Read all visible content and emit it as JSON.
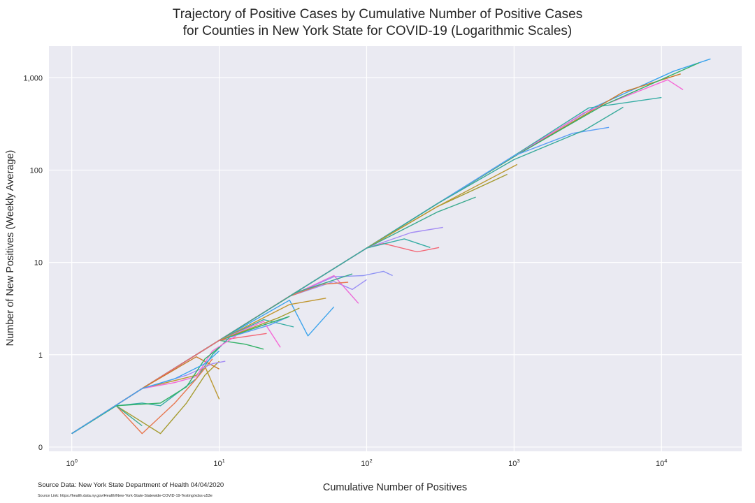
{
  "chart_data": {
    "type": "line",
    "title_line1": "Trajectory of Positive Cases by Cumulative Number of Positive Cases",
    "title_line2": "for Counties in New York State for COVID-19 (Logarithmic Scales)",
    "xlabel": "Cumulative Number of Positives",
    "ylabel": "Number of New Positives (Weekly Average)",
    "x_scale": "log",
    "y_scale": "log",
    "xlim": [
      0.7,
      35000
    ],
    "ylim": [
      0.09,
      2200
    ],
    "grid": true,
    "legend": "none",
    "x_ticks": [
      {
        "value": 1,
        "base": "10",
        "exp": "0"
      },
      {
        "value": 10,
        "base": "10",
        "exp": "1"
      },
      {
        "value": 100,
        "base": "10",
        "exp": "2"
      },
      {
        "value": 1000,
        "base": "10",
        "exp": "3"
      },
      {
        "value": 10000,
        "base": "10",
        "exp": "4"
      }
    ],
    "y_ticks": [
      {
        "value": 0.1,
        "label": "0"
      },
      {
        "value": 1,
        "label": "1"
      },
      {
        "value": 10,
        "label": "10"
      },
      {
        "value": 100,
        "label": "100"
      },
      {
        "value": 1000,
        "label": "1,000"
      }
    ],
    "series": [
      {
        "color": "#3ba3ec",
        "points": [
          [
            1,
            0.14
          ],
          [
            3,
            0.43
          ],
          [
            10,
            1.43
          ],
          [
            30,
            4.3
          ],
          [
            100,
            14.3
          ],
          [
            300,
            43
          ],
          [
            1000,
            143
          ],
          [
            3500,
            480
          ],
          [
            12000,
            1170
          ],
          [
            21500,
            1600
          ]
        ]
      },
      {
        "color": "#36ada4",
        "points": [
          [
            1,
            0.14
          ],
          [
            3,
            0.43
          ],
          [
            10,
            1.43
          ],
          [
            30,
            4.3
          ],
          [
            100,
            14.3
          ],
          [
            300,
            43
          ],
          [
            1000,
            143
          ],
          [
            3200,
            470
          ],
          [
            10000,
            610
          ]
        ]
      },
      {
        "color": "#cc7a2a",
        "points": [
          [
            1,
            0.14
          ],
          [
            3,
            0.43
          ],
          [
            10,
            1.43
          ],
          [
            30,
            4.3
          ],
          [
            100,
            14.3
          ],
          [
            300,
            43
          ],
          [
            1000,
            140
          ],
          [
            5500,
            700
          ],
          [
            13500,
            1100
          ]
        ]
      },
      {
        "color": "#f569d6",
        "points": [
          [
            1,
            0.14
          ],
          [
            3,
            0.43
          ],
          [
            10,
            1.43
          ],
          [
            30,
            4.3
          ],
          [
            100,
            14.3
          ],
          [
            300,
            43
          ],
          [
            1000,
            140
          ],
          [
            3000,
            420
          ],
          [
            11000,
            950
          ],
          [
            14000,
            740
          ]
        ]
      },
      {
        "color": "#32b166",
        "points": [
          [
            1,
            0.14
          ],
          [
            3,
            0.43
          ],
          [
            10,
            1.43
          ],
          [
            30,
            4.3
          ],
          [
            100,
            14.3
          ],
          [
            300,
            43
          ],
          [
            1000,
            140
          ],
          [
            4000,
            500
          ],
          [
            18000,
            1450
          ]
        ]
      },
      {
        "color": "#5a9ef6",
        "points": [
          [
            1,
            0.14
          ],
          [
            3,
            0.43
          ],
          [
            10,
            1.43
          ],
          [
            30,
            4.3
          ],
          [
            100,
            14.3
          ],
          [
            300,
            43
          ],
          [
            1000,
            143
          ],
          [
            2500,
            250
          ],
          [
            4400,
            290
          ]
        ]
      },
      {
        "color": "#37aa9a",
        "points": [
          [
            1,
            0.14
          ],
          [
            3,
            0.43
          ],
          [
            10,
            1.43
          ],
          [
            30,
            4.3
          ],
          [
            100,
            14.3
          ],
          [
            300,
            43
          ],
          [
            1000,
            130
          ],
          [
            3000,
            270
          ],
          [
            5500,
            480
          ]
        ]
      },
      {
        "color": "#a69c31",
        "points": [
          [
            1,
            0.14
          ],
          [
            3,
            0.43
          ],
          [
            10,
            1.43
          ],
          [
            30,
            4.3
          ],
          [
            100,
            14.3
          ],
          [
            300,
            40
          ],
          [
            900,
            90
          ]
        ]
      },
      {
        "color": "#bb9831",
        "points": [
          [
            1,
            0.14
          ],
          [
            3,
            0.43
          ],
          [
            10,
            1.43
          ],
          [
            30,
            4.3
          ],
          [
            100,
            14.3
          ],
          [
            300,
            40
          ],
          [
            1050,
            115
          ]
        ]
      },
      {
        "color": "#3aaa8e",
        "points": [
          [
            1,
            0.14
          ],
          [
            3,
            0.43
          ],
          [
            10,
            1.43
          ],
          [
            30,
            4.3
          ],
          [
            100,
            14.3
          ],
          [
            300,
            35
          ],
          [
            550,
            51
          ]
        ]
      },
      {
        "color": "#a48cf4",
        "points": [
          [
            1,
            0.14
          ],
          [
            3,
            0.43
          ],
          [
            10,
            1.43
          ],
          [
            30,
            4.3
          ],
          [
            100,
            14.3
          ],
          [
            200,
            21
          ],
          [
            330,
            24
          ]
        ]
      },
      {
        "color": "#f36574",
        "points": [
          [
            1,
            0.14
          ],
          [
            3,
            0.43
          ],
          [
            10,
            1.43
          ],
          [
            30,
            4.3
          ],
          [
            100,
            14.3
          ],
          [
            130,
            16
          ],
          [
            220,
            13
          ],
          [
            310,
            14.5
          ]
        ]
      },
      {
        "color": "#36ada4",
        "points": [
          [
            1,
            0.14
          ],
          [
            3,
            0.43
          ],
          [
            10,
            1.43
          ],
          [
            30,
            4.3
          ],
          [
            100,
            14.3
          ],
          [
            180,
            18
          ],
          [
            270,
            14.5
          ]
        ]
      },
      {
        "color": "#8f93f4",
        "points": [
          [
            1,
            0.14
          ],
          [
            3,
            0.43
          ],
          [
            10,
            1.43
          ],
          [
            30,
            4.3
          ],
          [
            60,
            7
          ],
          [
            95,
            7.2
          ],
          [
            130,
            8
          ],
          [
            150,
            7.2
          ]
        ]
      },
      {
        "color": "#9b8ff5",
        "points": [
          [
            1,
            0.14
          ],
          [
            3,
            0.43
          ],
          [
            10,
            1.43
          ],
          [
            30,
            4.3
          ],
          [
            60,
            6.2
          ],
          [
            80,
            5.1
          ],
          [
            100,
            6.5
          ]
        ]
      },
      {
        "color": "#ec6bd8",
        "points": [
          [
            1,
            0.14
          ],
          [
            3,
            0.43
          ],
          [
            10,
            1.43
          ],
          [
            30,
            4.3
          ],
          [
            60,
            7.2
          ],
          [
            88,
            3.6
          ]
        ]
      },
      {
        "color": "#e7774f",
        "points": [
          [
            1,
            0.14
          ],
          [
            3,
            0.43
          ],
          [
            10,
            1.43
          ],
          [
            30,
            4.3
          ],
          [
            50,
            5.8
          ],
          [
            75,
            6.1
          ]
        ]
      },
      {
        "color": "#3ba3ec",
        "points": [
          [
            1,
            0.14
          ],
          [
            3,
            0.43
          ],
          [
            10,
            1.43
          ],
          [
            30,
            3.9
          ],
          [
            40,
            1.6
          ],
          [
            60,
            3.3
          ]
        ]
      },
      {
        "color": "#c0962f",
        "points": [
          [
            1,
            0.14
          ],
          [
            3,
            0.43
          ],
          [
            10,
            1.43
          ],
          [
            30,
            3.5
          ],
          [
            53,
            4.1
          ]
        ]
      },
      {
        "color": "#3aaa8e",
        "points": [
          [
            1,
            0.14
          ],
          [
            3,
            0.43
          ],
          [
            10,
            1.43
          ],
          [
            33,
            4.7
          ],
          [
            80,
            7.5
          ]
        ]
      },
      {
        "color": "#36ada4",
        "points": [
          [
            1,
            0.14
          ],
          [
            3,
            0.43
          ],
          [
            10,
            1.43
          ],
          [
            20,
            2.4
          ],
          [
            32,
            2.0
          ]
        ]
      },
      {
        "color": "#5a9ef6",
        "points": [
          [
            1,
            0.14
          ],
          [
            3,
            0.43
          ],
          [
            10,
            1.43
          ],
          [
            22,
            2.1
          ],
          [
            30,
            2.6
          ]
        ]
      },
      {
        "color": "#f569d6",
        "points": [
          [
            1,
            0.14
          ],
          [
            3,
            0.43
          ],
          [
            10,
            1.43
          ],
          [
            20,
            2.3
          ],
          [
            26,
            1.2
          ]
        ]
      },
      {
        "color": "#32b166",
        "points": [
          [
            1,
            0.14
          ],
          [
            3,
            0.43
          ],
          [
            10,
            1.43
          ],
          [
            20,
            2.1
          ],
          [
            30,
            2.6
          ]
        ]
      },
      {
        "color": "#a69c31",
        "points": [
          [
            1,
            0.14
          ],
          [
            3,
            0.43
          ],
          [
            10,
            1.43
          ],
          [
            25,
            2.5
          ],
          [
            35,
            3.2
          ]
        ]
      },
      {
        "color": "#32b166",
        "points": [
          [
            1,
            0.14
          ],
          [
            3,
            0.43
          ],
          [
            10,
            1.43
          ],
          [
            15,
            1.3
          ],
          [
            20,
            1.15
          ]
        ]
      },
      {
        "color": "#f36574",
        "points": [
          [
            1,
            0.14
          ],
          [
            3,
            0.43
          ],
          [
            10,
            1.43
          ],
          [
            21,
            1.7
          ]
        ]
      },
      {
        "color": "#36ada4",
        "points": [
          [
            1,
            0.14
          ],
          [
            2,
            0.28
          ],
          [
            3,
            0.3
          ],
          [
            4,
            0.28
          ],
          [
            7,
            0.55
          ],
          [
            9,
            1.0
          ],
          [
            12,
            1.6
          ]
        ]
      },
      {
        "color": "#e7774f",
        "points": [
          [
            1,
            0.14
          ],
          [
            2,
            0.28
          ],
          [
            3,
            0.14
          ],
          [
            5,
            0.3
          ],
          [
            7,
            0.55
          ],
          [
            9,
            0.9
          ]
        ]
      },
      {
        "color": "#a69c31",
        "points": [
          [
            1,
            0.14
          ],
          [
            2,
            0.28
          ],
          [
            4,
            0.14
          ],
          [
            6,
            0.3
          ],
          [
            8,
            0.6
          ],
          [
            10,
            0.85
          ]
        ]
      },
      {
        "color": "#3aaa8e",
        "points": [
          [
            1,
            0.14
          ],
          [
            2,
            0.28
          ],
          [
            3,
            0.17
          ]
        ]
      },
      {
        "color": "#bb9831",
        "points": [
          [
            1,
            0.14
          ],
          [
            3,
            0.43
          ],
          [
            7,
            0.6
          ],
          [
            8,
            0.75
          ],
          [
            10,
            0.33
          ]
        ]
      },
      {
        "color": "#cc7a2a",
        "points": [
          [
            1,
            0.14
          ],
          [
            3,
            0.43
          ],
          [
            7,
            0.95
          ],
          [
            10,
            0.7
          ]
        ]
      },
      {
        "color": "#a48cf4",
        "points": [
          [
            1,
            0.14
          ],
          [
            3,
            0.43
          ],
          [
            6,
            0.6
          ],
          [
            9,
            0.8
          ],
          [
            11,
            0.85
          ]
        ]
      },
      {
        "color": "#f569d6",
        "points": [
          [
            1,
            0.14
          ],
          [
            3,
            0.43
          ],
          [
            5,
            0.5
          ],
          [
            7,
            0.58
          ],
          [
            9,
            1.1
          ],
          [
            13,
            1.6
          ]
        ]
      },
      {
        "color": "#32b166",
        "points": [
          [
            1,
            0.14
          ],
          [
            2,
            0.28
          ],
          [
            4,
            0.3
          ],
          [
            6,
            0.45
          ],
          [
            8,
            0.9
          ],
          [
            10,
            1.2
          ]
        ]
      },
      {
        "color": "#3ba3ec",
        "points": [
          [
            1,
            0.14
          ],
          [
            3,
            0.43
          ],
          [
            5,
            0.55
          ],
          [
            8,
            0.8
          ],
          [
            10,
            1.1
          ]
        ]
      }
    ]
  },
  "footer": {
    "source_data": "Source Data: New York State Department of Health 04/04/2020",
    "source_link": "Source Link: https://health.data.ny.gov/Health/New-York-State-Statewide-COVID-19-Testing/xdss-u53e"
  }
}
